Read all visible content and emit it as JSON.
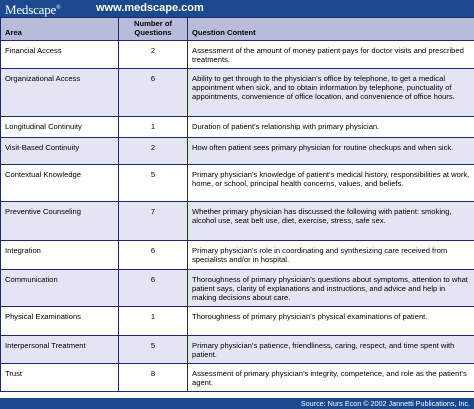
{
  "header": {
    "logo": "Medscape",
    "logo_mark": "®",
    "url": "www.medscape.com"
  },
  "table": {
    "columns": [
      "Area",
      "Number of Questions",
      "Question Content"
    ],
    "rows": [
      {
        "area": "Financial Access",
        "count": "2",
        "content": "Assessment of the amount of money patient pays for doctor visits and prescribed treatments."
      },
      {
        "area": "Organizational Access",
        "count": "6",
        "content": "Ability to get through to the physician’s office by telephone, to get a medical appointment when sick, and to obtain information by telephone, punctuality of appointments, convenience of office location, and convenience of office hours."
      },
      {
        "area": "Longitudinal Continuity",
        "count": "1",
        "content": "Duration of patient’s relationship with primary physician."
      },
      {
        "area": "Visit-Based Continuity",
        "count": "2",
        "content": "How often patient sees primary physician for routine checkups and when sick."
      },
      {
        "area": "Contextual Knowledge",
        "count": "5",
        "content": "Primary physician’s knowledge of patient’s medical history, responsibilities at work, home, or school, principal health concerns, values, and beliefs."
      },
      {
        "area": "Preventive Counseling",
        "count": "7",
        "content": "Whether primary physician has discussed the following with patient: smoking, alcohol use, seat belt use, diet, exercise, stress, safe sex."
      },
      {
        "area": "Integration",
        "count": "6",
        "content": "Primary physician’s role in coordinating and synthesizing care received from specialists and/or in hospital."
      },
      {
        "area": "Communication",
        "count": "6",
        "content": "Thoroughness of primary physician’s questions about symptoms, attention to what patient says, clarity of explanations and instructions, and advice and help in making decisions about care."
      },
      {
        "area": "Physical Examinations",
        "count": "1",
        "content": "Thoroughness of primary physician’s physical examinations of patient."
      },
      {
        "area": "Interpersonal Treatment",
        "count": "5",
        "content": "Primary physician’s patience, friendliness, caring, respect, and time spent with patient."
      },
      {
        "area": "Trust",
        "count": "8",
        "content": "Assessment of primary physician’s integrity, competence, and role as the patient’s agent."
      }
    ]
  },
  "footer": {
    "source": "Source: Nurs Econ © 2002 Jannetti Publications, Inc."
  }
}
